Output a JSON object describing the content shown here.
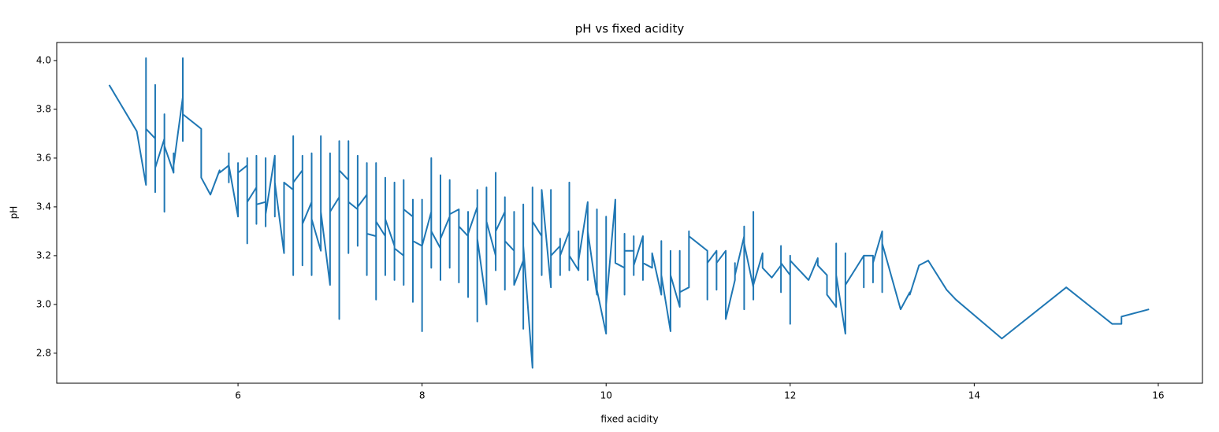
{
  "chart_data": {
    "type": "line",
    "title": "pH vs fixed acidity",
    "x_label": "fixed acidity",
    "y_label": "pH",
    "color": "#1f77b4",
    "x": [
      4.6,
      4.9,
      5.0,
      5.0,
      5.0,
      5.1,
      5.1,
      5.1,
      5.1,
      5.2,
      5.2,
      5.2,
      5.2,
      5.3,
      5.3,
      5.3,
      5.4,
      5.4,
      5.4,
      5.4,
      5.6,
      5.6,
      5.7,
      5.8,
      5.8,
      5.9,
      5.9,
      5.9,
      5.9,
      6.0,
      6.0,
      6.0,
      6.1,
      6.1,
      6.1,
      6.1,
      6.2,
      6.2,
      6.2,
      6.2,
      6.3,
      6.3,
      6.3,
      6.3,
      6.4,
      6.4,
      6.4,
      6.5,
      6.5,
      6.6,
      6.6,
      6.6,
      6.6,
      6.7,
      6.7,
      6.7,
      6.7,
      6.8,
      6.8,
      6.8,
      6.8,
      6.9,
      6.9,
      6.9,
      7.0,
      7.0,
      7.0,
      7.1,
      7.1,
      7.1,
      7.1,
      7.2,
      7.2,
      7.2,
      7.2,
      7.3,
      7.3,
      7.3,
      7.3,
      7.4,
      7.4,
      7.4,
      7.4,
      7.5,
      7.5,
      7.5,
      7.5,
      7.6,
      7.6,
      7.6,
      7.6,
      7.7,
      7.7,
      7.7,
      7.7,
      7.8,
      7.8,
      7.8,
      7.8,
      7.9,
      7.9,
      7.9,
      7.9,
      8.0,
      8.0,
      8.0,
      8.0,
      8.1,
      8.1,
      8.1,
      8.1,
      8.2,
      8.2,
      8.2,
      8.2,
      8.3,
      8.3,
      8.3,
      8.3,
      8.4,
      8.4,
      8.4,
      8.5,
      8.5,
      8.5,
      8.5,
      8.6,
      8.6,
      8.6,
      8.6,
      8.7,
      8.7,
      8.7,
      8.8,
      8.8,
      8.8,
      8.8,
      8.9,
      8.9,
      8.9,
      8.9,
      9.0,
      9.0,
      9.0,
      9.0,
      9.1,
      9.1,
      9.1,
      9.1,
      9.2,
      9.2,
      9.2,
      9.3,
      9.3,
      9.3,
      9.4,
      9.4,
      9.4,
      9.5,
      9.5,
      9.5,
      9.5,
      9.6,
      9.6,
      9.6,
      9.6,
      9.7,
      9.7,
      9.7,
      9.8,
      9.8,
      9.8,
      9.9,
      9.9,
      9.9,
      10.0,
      10.0,
      10.0,
      10.1,
      10.1,
      10.2,
      10.2,
      10.2,
      10.2,
      10.3,
      10.3,
      10.3,
      10.3,
      10.4,
      10.4,
      10.4,
      10.5,
      10.5,
      10.6,
      10.6,
      10.6,
      10.7,
      10.7,
      10.7,
      10.8,
      10.8,
      10.8,
      10.9,
      10.9,
      10.9,
      11.1,
      11.1,
      11.1,
      11.2,
      11.2,
      11.2,
      11.3,
      11.3,
      11.4,
      11.4,
      11.4,
      11.5,
      11.5,
      11.5,
      11.5,
      11.6,
      11.6,
      11.6,
      11.6,
      11.7,
      11.7,
      11.8,
      11.9,
      11.9,
      11.9,
      11.9,
      12.0,
      12.0,
      12.0,
      12.0,
      12.2,
      12.3,
      12.3,
      12.4,
      12.4,
      12.5,
      12.5,
      12.5,
      12.6,
      12.6,
      12.6,
      12.7,
      12.8,
      12.8,
      12.8,
      12.9,
      12.9,
      12.9,
      13.0,
      13.0,
      13.0,
      13.2,
      13.3,
      13.3,
      13.4,
      13.5,
      13.7,
      13.8,
      14.3,
      15.0,
      15.5,
      15.6,
      15.6,
      15.9
    ],
    "values": [
      3.9,
      3.71,
      3.49,
      4.01,
      3.72,
      3.68,
      3.46,
      3.9,
      3.56,
      3.68,
      3.38,
      3.78,
      3.65,
      3.54,
      3.62,
      3.57,
      3.85,
      4.01,
      3.67,
      3.78,
      3.72,
      3.52,
      3.45,
      3.55,
      3.54,
      3.57,
      3.62,
      3.5,
      3.57,
      3.36,
      3.58,
      3.54,
      3.57,
      3.25,
      3.6,
      3.42,
      3.48,
      3.33,
      3.61,
      3.41,
      3.42,
      3.32,
      3.6,
      3.37,
      3.61,
      3.36,
      3.5,
      3.21,
      3.5,
      3.47,
      3.12,
      3.69,
      3.5,
      3.55,
      3.16,
      3.61,
      3.33,
      3.42,
      3.12,
      3.62,
      3.35,
      3.22,
      3.69,
      3.38,
      3.08,
      3.62,
      3.38,
      3.44,
      2.94,
      3.67,
      3.55,
      3.51,
      3.21,
      3.67,
      3.42,
      3.39,
      3.24,
      3.61,
      3.4,
      3.45,
      3.12,
      3.58,
      3.29,
      3.28,
      3.02,
      3.58,
      3.34,
      3.28,
      3.12,
      3.52,
      3.35,
      3.24,
      3.1,
      3.5,
      3.23,
      3.2,
      3.08,
      3.51,
      3.39,
      3.36,
      3.01,
      3.43,
      3.26,
      3.24,
      2.89,
      3.43,
      3.24,
      3.38,
      3.15,
      3.6,
      3.3,
      3.23,
      3.1,
      3.53,
      3.27,
      3.36,
      3.15,
      3.51,
      3.37,
      3.39,
      3.09,
      3.32,
      3.28,
      3.03,
      3.38,
      3.29,
      3.4,
      2.93,
      3.47,
      3.27,
      3.0,
      3.48,
      3.34,
      3.2,
      3.14,
      3.54,
      3.3,
      3.38,
      3.06,
      3.44,
      3.26,
      3.22,
      3.08,
      3.38,
      3.08,
      3.18,
      2.9,
      3.41,
      3.24,
      2.74,
      3.48,
      3.34,
      3.28,
      3.12,
      3.47,
      3.07,
      3.47,
      3.2,
      3.24,
      3.12,
      3.27,
      3.2,
      3.3,
      3.14,
      3.5,
      3.2,
      3.14,
      3.3,
      3.18,
      3.42,
      3.1,
      3.3,
      3.04,
      3.39,
      3.06,
      2.88,
      3.36,
      3.0,
      3.43,
      3.17,
      3.15,
      3.04,
      3.29,
      3.22,
      3.22,
      3.12,
      3.28,
      3.16,
      3.28,
      3.1,
      3.17,
      3.15,
      3.21,
      3.04,
      3.26,
      3.12,
      2.89,
      3.22,
      3.12,
      2.99,
      3.22,
      3.05,
      3.07,
      3.3,
      3.28,
      3.22,
      3.02,
      3.17,
      3.22,
      3.06,
      3.17,
      3.22,
      2.94,
      3.1,
      3.17,
      3.12,
      3.28,
      2.98,
      3.32,
      3.25,
      3.07,
      3.02,
      3.38,
      3.08,
      3.21,
      3.15,
      3.11,
      3.16,
      3.05,
      3.24,
      3.17,
      3.12,
      2.92,
      3.2,
      3.18,
      3.1,
      3.19,
      3.16,
      3.12,
      3.04,
      2.99,
      3.25,
      3.12,
      2.88,
      3.21,
      3.08,
      3.14,
      3.2,
      3.07,
      3.2,
      3.2,
      3.09,
      3.17,
      3.3,
      3.05,
      3.25,
      2.98,
      3.05,
      3.04,
      3.16,
      3.18,
      3.06,
      3.02,
      2.86,
      3.07,
      2.92,
      2.92,
      2.95,
      2.98
    ],
    "xlim": [
      4.03,
      16.48
    ],
    "xticks": [
      6,
      8,
      10,
      12,
      14,
      16
    ],
    "ylim": [
      2.677,
      4.074
    ],
    "yticks": [
      2.8,
      {
        "value": 3.0,
        "label": "3.0"
      },
      3.2,
      3.4,
      3.6,
      3.8,
      {
        "value": 4.0,
        "label": "4.0"
      }
    ]
  }
}
